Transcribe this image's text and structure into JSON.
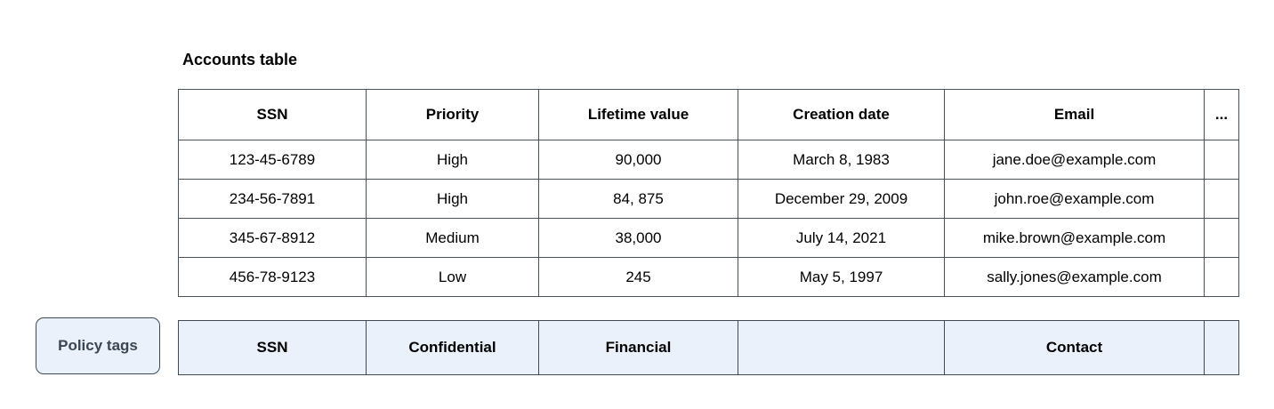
{
  "title": "Accounts table",
  "accounts_table": {
    "columns": [
      "SSN",
      "Priority",
      "Lifetime value",
      "Creation date",
      "Email",
      "..."
    ],
    "rows": [
      [
        "123-45-6789",
        "High",
        "90,000",
        "March 8, 1983",
        "jane.doe@example.com",
        ""
      ],
      [
        "234-56-7891",
        "High",
        "84, 875",
        "December 29, 2009",
        "john.roe@example.com",
        ""
      ],
      [
        "345-67-8912",
        "Medium",
        "38,000",
        "July 14, 2021",
        "mike.brown@example.com",
        ""
      ],
      [
        "456-78-9123",
        "Low",
        "245",
        "May 5, 1997",
        "sally.jones@example.com",
        ""
      ]
    ]
  },
  "policy_tags": {
    "label": "Policy tags",
    "tags": [
      "SSN",
      "Confidential",
      "Financial",
      "",
      "Contact",
      ""
    ]
  },
  "colors": {
    "table_border": "#47525d",
    "policy_border": "#3f4a55",
    "policy_fill": "#eaf1fb",
    "policy_label_color": "#3a4653",
    "text_color": "#000000"
  }
}
